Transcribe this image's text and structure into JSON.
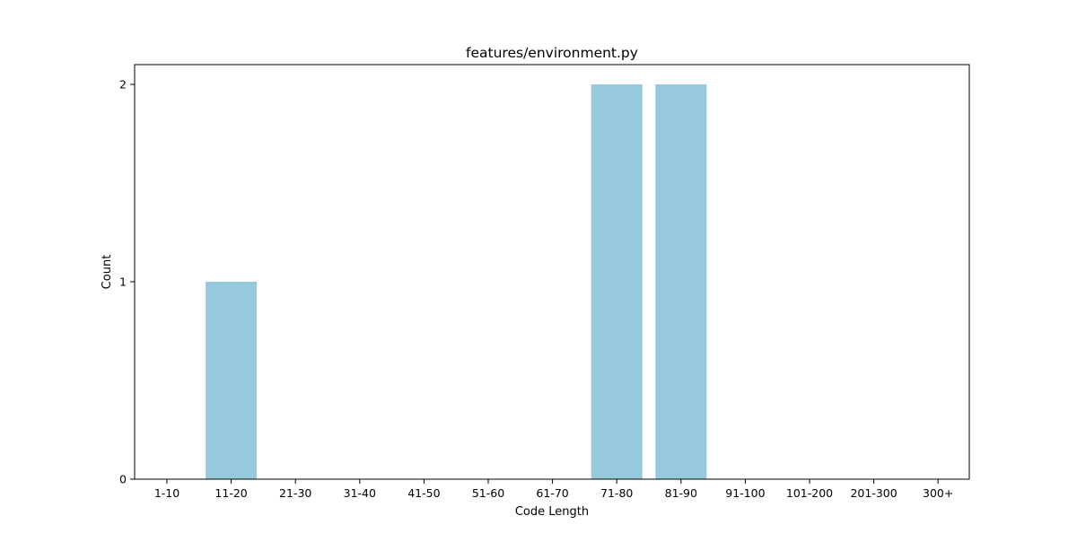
{
  "chart_data": {
    "type": "bar",
    "title": "features/environment.py",
    "xlabel": "Code Length",
    "ylabel": "Count",
    "categories": [
      "1-10",
      "11-20",
      "21-30",
      "31-40",
      "41-50",
      "51-60",
      "61-70",
      "71-80",
      "81-90",
      "91-100",
      "101-200",
      "201-300",
      "300+"
    ],
    "values": [
      0,
      1,
      0,
      0,
      0,
      0,
      0,
      2,
      2,
      0,
      0,
      0,
      0
    ],
    "yticks": [
      "0",
      "1",
      "2"
    ],
    "ylim": [
      0,
      2.1
    ],
    "grid": false,
    "legend": "none",
    "bar_color": "#96c9dd"
  }
}
